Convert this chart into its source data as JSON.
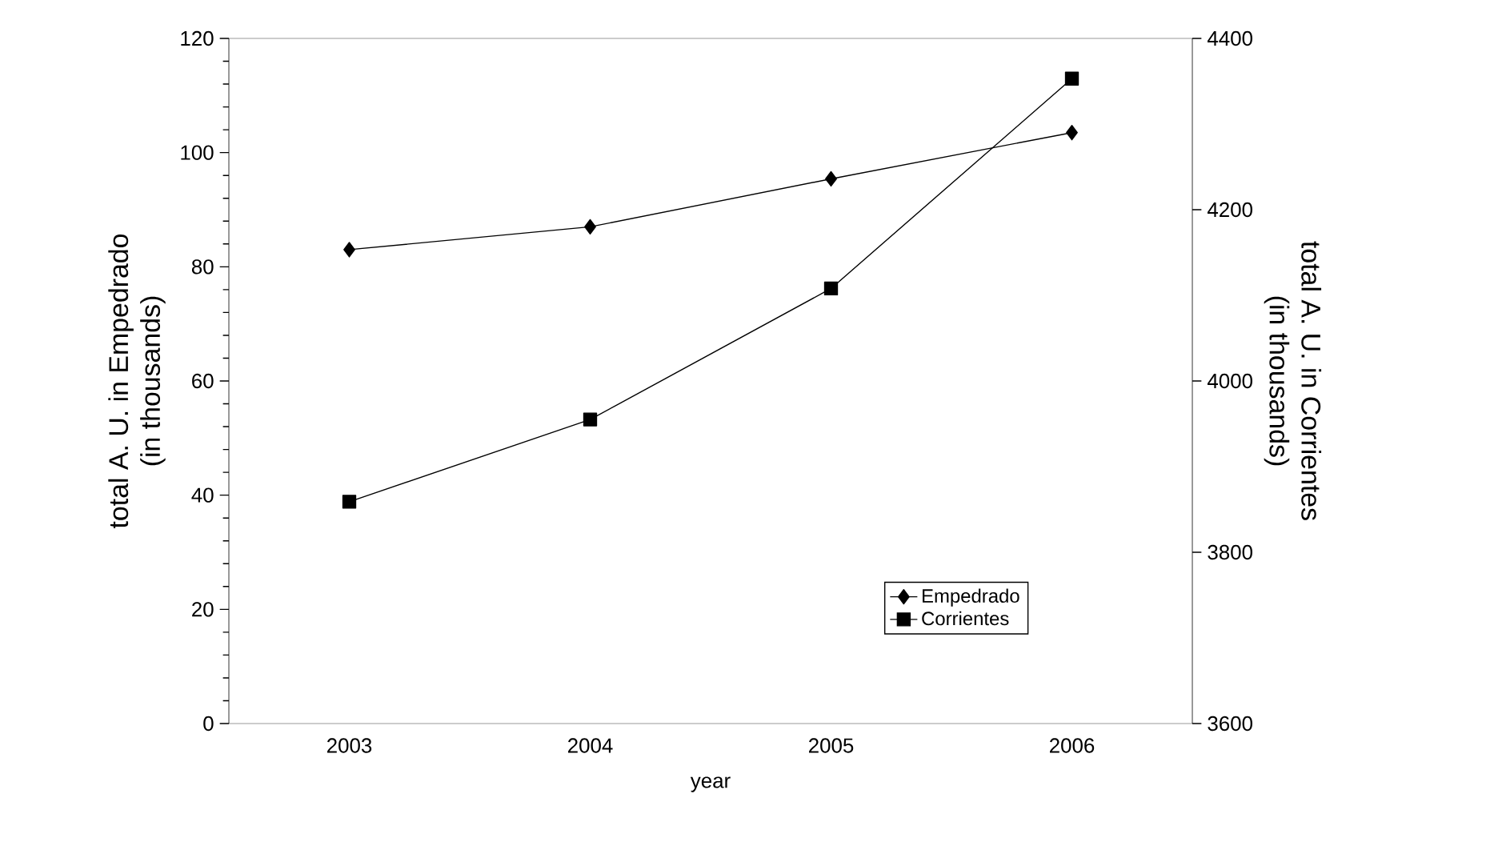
{
  "chart_data": {
    "type": "line",
    "xlabel": "year",
    "ylabel": "total A. U. in Empedrado\n(in thousands)",
    "y2label": "total A. U. in Corrientes\n(in thousands)",
    "categories": [
      "2003",
      "2004",
      "2005",
      "2006"
    ],
    "series": [
      {
        "name": "Empedrado",
        "color": "#000000",
        "marker": "diamond",
        "values": [
          83,
          87,
          95.4,
          103.5
        ]
      },
      {
        "name": "Corrientes",
        "color": "#000000",
        "marker": "square",
        "axis": "y2",
        "values": [
          3859,
          3955,
          4108,
          4353
        ]
      }
    ],
    "ylim": [
      0,
      120
    ],
    "yticks": [
      0,
      20,
      40,
      60,
      80,
      100,
      120
    ],
    "y2lim": [
      3600,
      4400
    ],
    "y2ticks": [
      3600,
      3800,
      4000,
      4200,
      4400
    ],
    "legend": "bottom right",
    "grid": false
  }
}
